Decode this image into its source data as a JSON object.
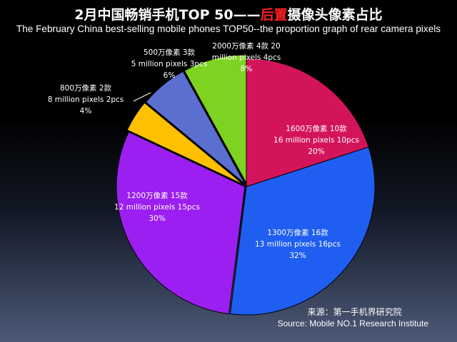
{
  "title": {
    "part1": "2月中国畅销手机TOP 50——",
    "highlight": "后置",
    "part2": "摄像头像素占比",
    "highlight_color": "#ff2020"
  },
  "subtitle": "The February China best-selling mobile phones TOP50--the proportion graph of rear camera pixels",
  "source": {
    "cn": "来源：第一手机界研究院",
    "en": "Source: Mobile NO.1 Research Institute"
  },
  "chart_data": {
    "type": "pie",
    "title": "2月中国畅销手机TOP 50——后置摄像头像素占比",
    "subtitle": "The February China best-selling mobile phones TOP50--the proportion graph of rear camera pixels",
    "slices": [
      {
        "category_cn": "1600万像素 10款",
        "category_en": "16 million pixels 10pcs",
        "count": 10,
        "percent": "20%",
        "value": 20,
        "color": "#d4145a"
      },
      {
        "category_cn": "1300万像素 16款",
        "category_en": "13 million pixels 16pcs",
        "count": 16,
        "percent": "32%",
        "value": 32,
        "color": "#1f5ef0"
      },
      {
        "category_cn": "1200万像素 15款",
        "category_en": "12 million pixels 15pcs",
        "count": 15,
        "percent": "30%",
        "value": 30,
        "color": "#9b1ff0"
      },
      {
        "category_cn": "800万像素 2款",
        "category_en": "8 million pixels 2pcs",
        "count": 2,
        "percent": "4%",
        "value": 4,
        "color": "#ffc000"
      },
      {
        "category_cn": "500万像素 3款",
        "category_en": "5 million pixels 3pcs",
        "count": 3,
        "percent": "6%",
        "value": 6,
        "color": "#5b6fd0"
      },
      {
        "category_cn": "2000万像素 4款 20",
        "category_en": "million pixels 4pcs",
        "count": 4,
        "percent": "8%",
        "value": 8,
        "color": "#7ed321"
      }
    ]
  }
}
